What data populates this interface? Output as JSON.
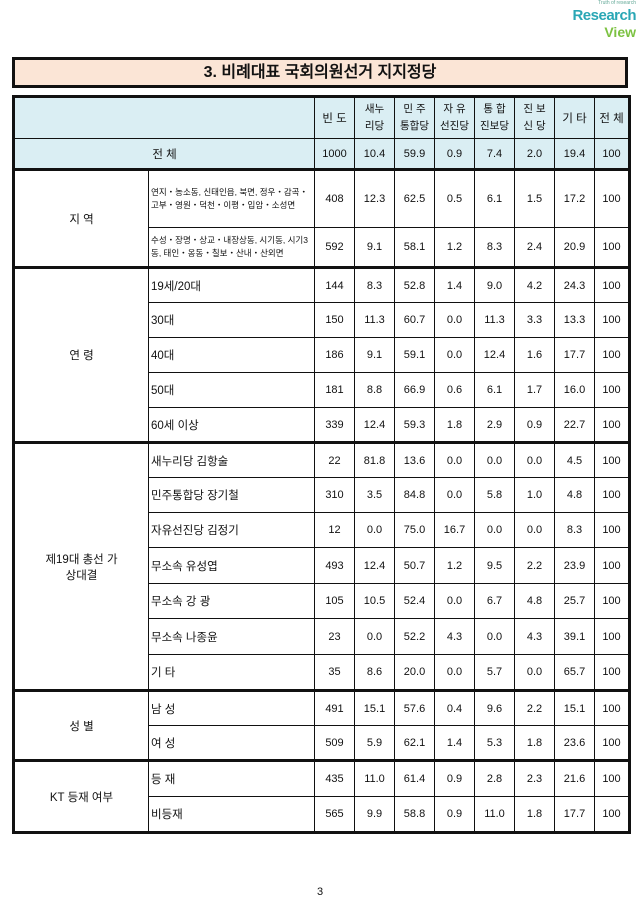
{
  "logo": {
    "tagline": "Truth of research",
    "brand_top": "Research",
    "brand_bottom": "View"
  },
  "title": "3. 비례대표 국회의원선거 지지정당",
  "columns": [
    "빈 도",
    [
      "새누",
      "리당"
    ],
    [
      "민 주",
      "통합당"
    ],
    [
      "자 유",
      "선진당"
    ],
    [
      "통 합",
      "진보당"
    ],
    [
      "진 보",
      "신 당"
    ],
    "기 타",
    "전 체"
  ],
  "total": {
    "label": "전 체",
    "values": [
      "1000",
      "10.4",
      "59.9",
      "0.9",
      "7.4",
      "2.0",
      "19.4",
      "100"
    ]
  },
  "groups": [
    {
      "label": "지 역",
      "rows": [
        {
          "label": "연지・농소동, 신태인읍, 북면, 정우・감곡・고부・영원・덕천・이평・입암・소성면",
          "values": [
            "408",
            "12.3",
            "62.5",
            "0.5",
            "6.1",
            "1.5",
            "17.2",
            "100"
          ]
        },
        {
          "label": "수성・장명・상교・내장상동, 시기동, 시기3동, 태인・옹동・칠보・산내・산외면",
          "values": [
            "592",
            "9.1",
            "58.1",
            "1.2",
            "8.3",
            "2.4",
            "20.9",
            "100"
          ]
        }
      ]
    },
    {
      "label": "연 령",
      "rows": [
        {
          "label": "19세/20대",
          "values": [
            "144",
            "8.3",
            "52.8",
            "1.4",
            "9.0",
            "4.2",
            "24.3",
            "100"
          ]
        },
        {
          "label": "30대",
          "values": [
            "150",
            "11.3",
            "60.7",
            "0.0",
            "11.3",
            "3.3",
            "13.3",
            "100"
          ]
        },
        {
          "label": "40대",
          "values": [
            "186",
            "9.1",
            "59.1",
            "0.0",
            "12.4",
            "1.6",
            "17.7",
            "100"
          ]
        },
        {
          "label": "50대",
          "values": [
            "181",
            "8.8",
            "66.9",
            "0.6",
            "6.1",
            "1.7",
            "16.0",
            "100"
          ]
        },
        {
          "label": "60세 이상",
          "values": [
            "339",
            "12.4",
            "59.3",
            "1.8",
            "2.9",
            "0.9",
            "22.7",
            "100"
          ]
        }
      ]
    },
    {
      "label": "제19대 총선 가상대결",
      "rows": [
        {
          "label": "새누리당 김항술",
          "values": [
            "22",
            "81.8",
            "13.6",
            "0.0",
            "0.0",
            "0.0",
            "4.5",
            "100"
          ]
        },
        {
          "label": "민주통합당 장기철",
          "values": [
            "310",
            "3.5",
            "84.8",
            "0.0",
            "5.8",
            "1.0",
            "4.8",
            "100"
          ]
        },
        {
          "label": "자유선진당 김정기",
          "values": [
            "12",
            "0.0",
            "75.0",
            "16.7",
            "0.0",
            "0.0",
            "8.3",
            "100"
          ]
        },
        {
          "label": "무소속 유성엽",
          "values": [
            "493",
            "12.4",
            "50.7",
            "1.2",
            "9.5",
            "2.2",
            "23.9",
            "100"
          ]
        },
        {
          "label": "무소속 강 광",
          "values": [
            "105",
            "10.5",
            "52.4",
            "0.0",
            "6.7",
            "4.8",
            "25.7",
            "100"
          ]
        },
        {
          "label": "무소속 나종윤",
          "values": [
            "23",
            "0.0",
            "52.2",
            "4.3",
            "0.0",
            "4.3",
            "39.1",
            "100"
          ]
        },
        {
          "label": "기 타",
          "values": [
            "35",
            "8.6",
            "20.0",
            "0.0",
            "5.7",
            "0.0",
            "65.7",
            "100"
          ]
        }
      ]
    },
    {
      "label": "성 별",
      "rows": [
        {
          "label": "남 성",
          "values": [
            "491",
            "15.1",
            "57.6",
            "0.4",
            "9.6",
            "2.2",
            "15.1",
            "100"
          ]
        },
        {
          "label": "여 성",
          "values": [
            "509",
            "5.9",
            "62.1",
            "1.4",
            "5.3",
            "1.8",
            "23.6",
            "100"
          ]
        }
      ]
    },
    {
      "label": "KT 등재 여부",
      "rows": [
        {
          "label": "등 재",
          "values": [
            "435",
            "11.0",
            "61.4",
            "0.9",
            "2.8",
            "2.3",
            "21.6",
            "100"
          ]
        },
        {
          "label": "비등재",
          "values": [
            "565",
            "9.9",
            "58.8",
            "0.9",
            "11.0",
            "1.8",
            "17.7",
            "100"
          ]
        }
      ]
    }
  ],
  "page_number": "3"
}
